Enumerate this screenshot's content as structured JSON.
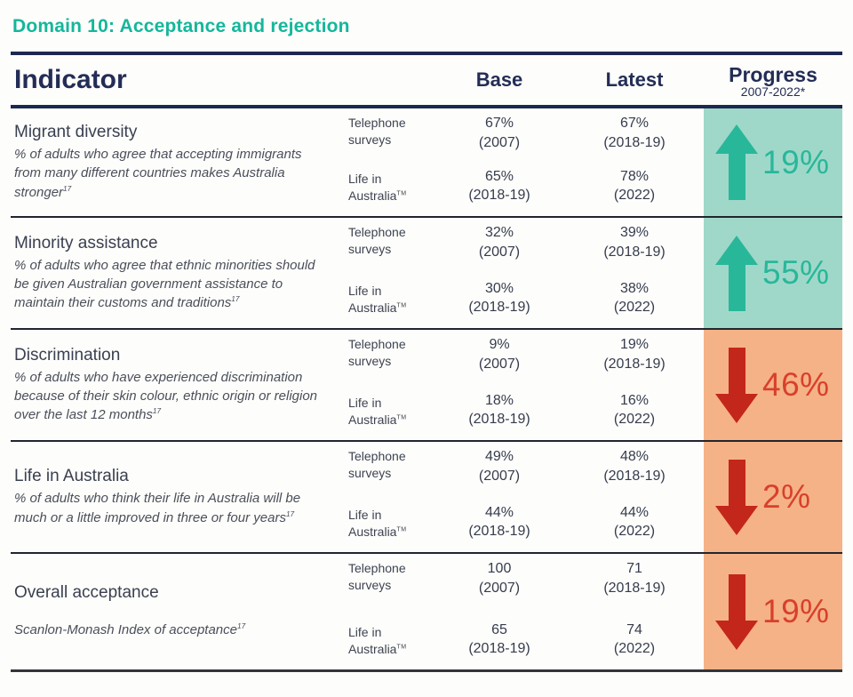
{
  "title": "Domain 10: Acceptance and rejection",
  "table": {
    "headers": {
      "indicator": "Indicator",
      "base": "Base",
      "latest": "Latest",
      "progress": "Progress",
      "progress_period": "2007-2022*"
    },
    "rows": [
      {
        "name": "Migrant diversity",
        "description": "% of adults who agree that accepting immigrants from many different countries makes Australia stronger",
        "ref": "17",
        "methods": [
          {
            "label": "Telephone surveys",
            "base": "67%",
            "base_year": "(2007)",
            "latest": "67%",
            "latest_year": "(2018-19)"
          },
          {
            "label": "Life in Australia",
            "tm": "TM",
            "base": "65%",
            "base_year": "(2018-19)",
            "latest": "78%",
            "latest_year": "(2022)"
          }
        ],
        "progress": {
          "direction": "up",
          "value": "19%"
        }
      },
      {
        "name": "Minority assistance",
        "description": "% of adults who agree that ethnic minorities should be given Australian government assistance to maintain their customs and traditions",
        "ref": "17",
        "methods": [
          {
            "label": "Telephone surveys",
            "base": "32%",
            "base_year": "(2007)",
            "latest": "39%",
            "latest_year": "(2018-19)"
          },
          {
            "label": "Life in Australia",
            "tm": "TM",
            "base": "30%",
            "base_year": "(2018-19)",
            "latest": "38%",
            "latest_year": "(2022)"
          }
        ],
        "progress": {
          "direction": "up",
          "value": "55%"
        }
      },
      {
        "name": "Discrimination",
        "description": "% of adults who have experienced discrimination because of their skin colour, ethnic origin or religion over the last 12 months",
        "ref": "17",
        "methods": [
          {
            "label": "Telephone surveys",
            "base": "9%",
            "base_year": "(2007)",
            "latest": "19%",
            "latest_year": "(2018-19)"
          },
          {
            "label": "Life in Australia",
            "tm": "TM",
            "base": "18%",
            "base_year": "(2018-19)",
            "latest": "16%",
            "latest_year": "(2022)"
          }
        ],
        "progress": {
          "direction": "down",
          "value": "46%"
        }
      },
      {
        "name": "Life in Australia",
        "description": "% of adults who think their life in Australia will be much or a little improved in three or four years",
        "ref": "17",
        "methods": [
          {
            "label": "Telephone surveys",
            "base": "49%",
            "base_year": "(2007)",
            "latest": "48%",
            "latest_year": "(2018-19)"
          },
          {
            "label": "Life in Australia",
            "tm": "TM",
            "base": "44%",
            "base_year": "(2018-19)",
            "latest": "44%",
            "latest_year": "(2022)"
          }
        ],
        "progress": {
          "direction": "down",
          "value": "2%"
        }
      },
      {
        "name": "Overall acceptance",
        "description": "Scanlon-Monash Index of acceptance",
        "ref": "17",
        "methods": [
          {
            "label": "Telephone surveys",
            "base": "100",
            "base_year": "(2007)",
            "latest": "71",
            "latest_year": "(2018-19)"
          },
          {
            "label": "Life in Australia",
            "tm": "TM",
            "base": "65",
            "base_year": "(2018-19)",
            "latest": "74",
            "latest_year": "(2022)"
          }
        ],
        "progress": {
          "direction": "down",
          "value": "19%"
        }
      }
    ]
  },
  "colors": {
    "title_teal": "#14b79b",
    "header_navy": "#232d56",
    "progress_up_bg": "#9fd8c9",
    "progress_up_fg": "#29b79a",
    "progress_down_bg": "#f5b286",
    "progress_down_arrow": "#c3261a",
    "progress_down_fg": "#d8402c"
  }
}
